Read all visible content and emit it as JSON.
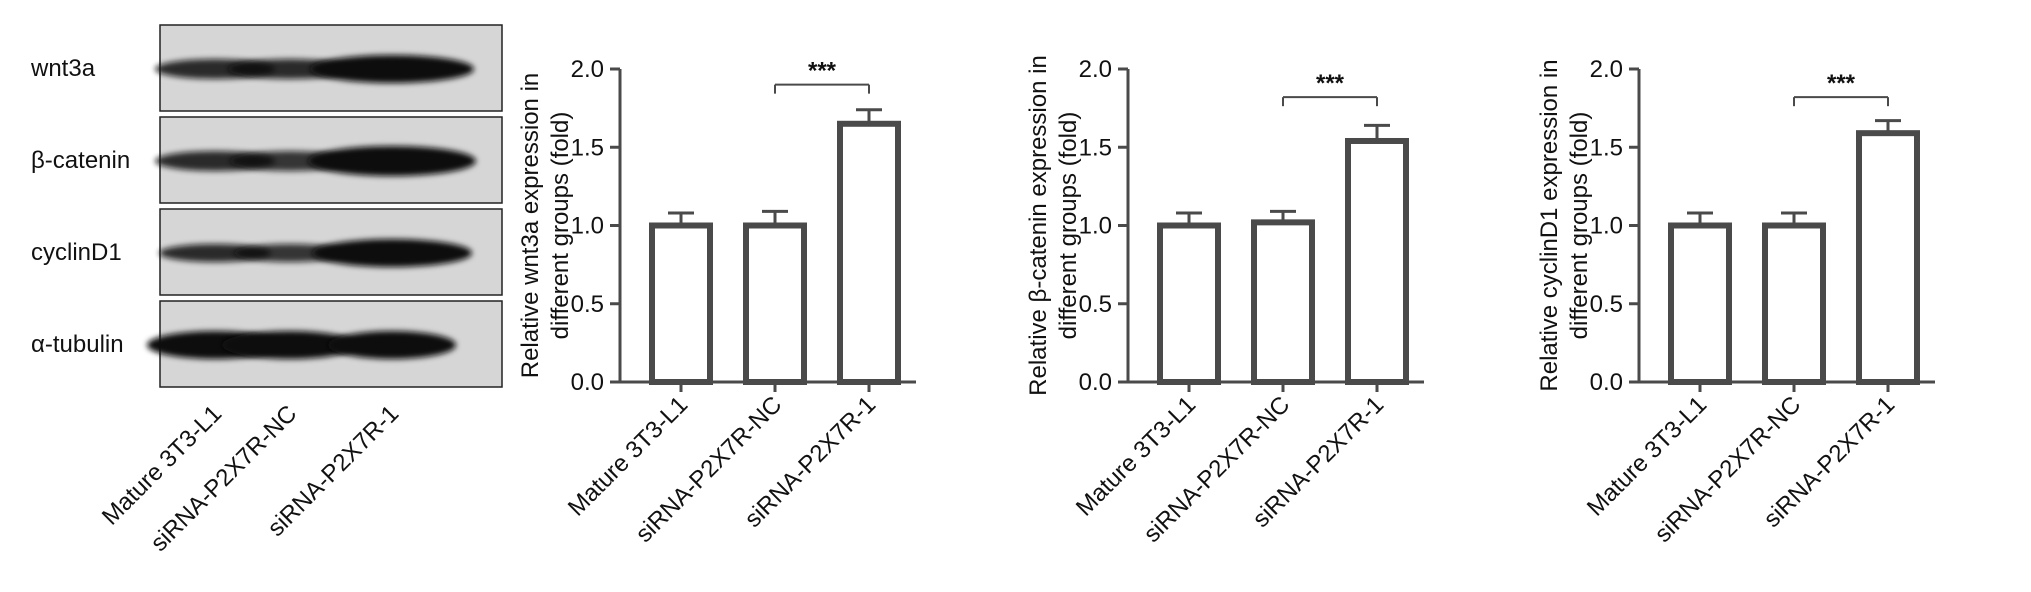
{
  "blot": {
    "rows": [
      "wnt3a",
      "β-catenin",
      "cyclinD1",
      "α-tubulin"
    ],
    "lanes": [
      "Mature 3T3-L1",
      "siRNA-P2X7R-NC",
      "siRNA-P2X7R-1"
    ]
  },
  "chart_data": [
    {
      "type": "bar",
      "categories": [
        "Mature 3T3-L1",
        "siRNA-P2X7R-NC",
        "siRNA-P2X7R-1"
      ],
      "values": [
        1.0,
        1.0,
        1.65
      ],
      "errors": [
        0.08,
        0.09,
        0.09
      ],
      "ylabel": "Relative wnt3a expression in different groups (fold)",
      "ylabel_lines": [
        "Relative wnt3a expression in",
        "different groups (fold)"
      ],
      "ylim": [
        0,
        2.0
      ],
      "yticks": [
        "0.0",
        "0.5",
        "1.0",
        "1.5",
        "2.0"
      ],
      "significance": {
        "from": 1,
        "to": 2,
        "label": "***",
        "y": 1.9
      }
    },
    {
      "type": "bar",
      "categories": [
        "Mature 3T3-L1",
        "siRNA-P2X7R-NC",
        "siRNA-P2X7R-1"
      ],
      "values": [
        1.0,
        1.02,
        1.54
      ],
      "errors": [
        0.08,
        0.07,
        0.1
      ],
      "ylabel": "Relative β-catenin expression in different groups (fold)",
      "ylabel_lines": [
        "Relative β-catenin expression in",
        "different groups (fold)"
      ],
      "ylim": [
        0,
        2.0
      ],
      "yticks": [
        "0.0",
        "0.5",
        "1.0",
        "1.5",
        "2.0"
      ],
      "significance": {
        "from": 1,
        "to": 2,
        "label": "***",
        "y": 1.82
      }
    },
    {
      "type": "bar",
      "categories": [
        "Mature 3T3-L1",
        "siRNA-P2X7R-NC",
        "siRNA-P2X7R-1"
      ],
      "values": [
        1.0,
        1.0,
        1.59
      ],
      "errors": [
        0.08,
        0.08,
        0.08
      ],
      "ylabel": "Relative cyclinD1 expression in different groups (fold)",
      "ylabel_lines": [
        "Relative cyclinD1 expression in",
        "different groups (fold)"
      ],
      "ylim": [
        0,
        2.0
      ],
      "yticks": [
        "0.0",
        "0.5",
        "1.0",
        "1.5",
        "2.0"
      ],
      "significance": {
        "from": 1,
        "to": 2,
        "label": "***",
        "y": 1.82
      }
    }
  ]
}
